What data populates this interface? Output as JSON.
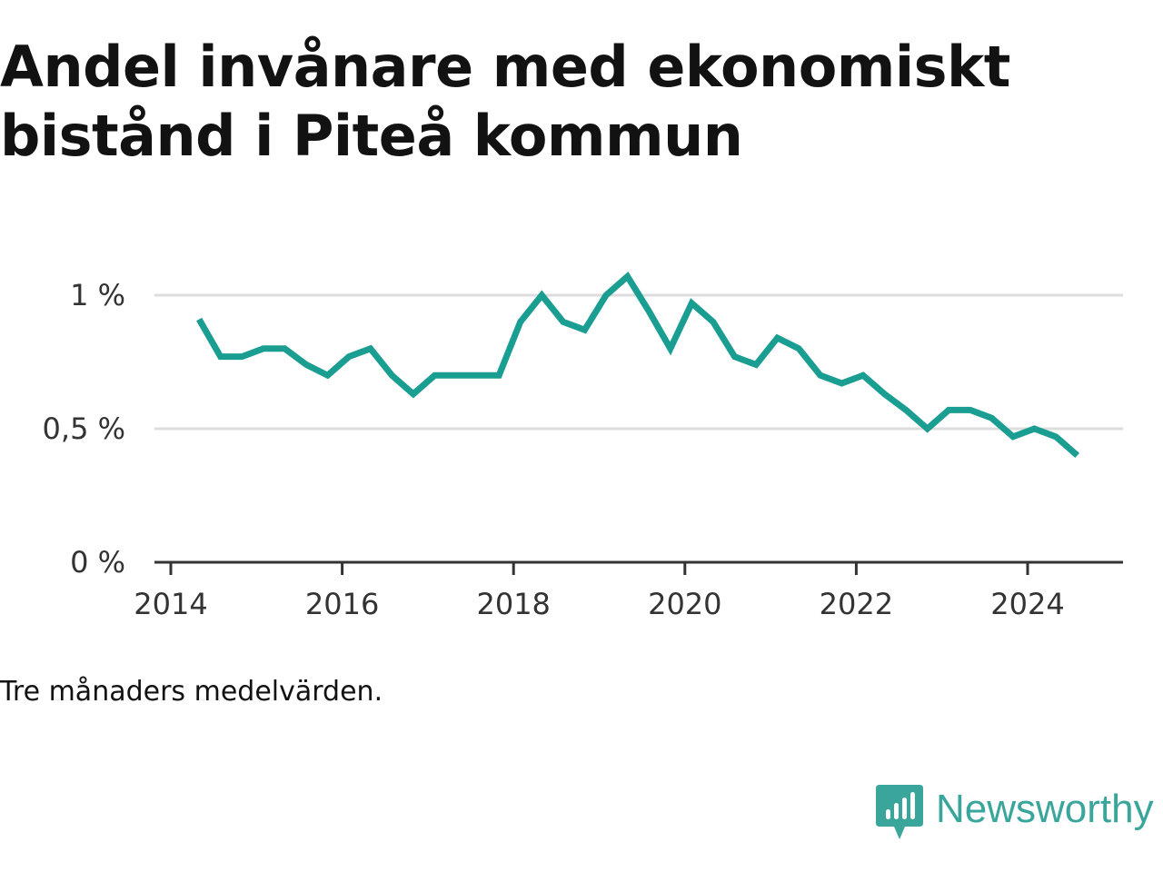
{
  "title": "Andel invånare med ekonomiskt bistånd i Piteå kommun",
  "caption": "Tre månaders medelvärden.",
  "brand": {
    "name": "Newsworthy",
    "icon": "bar-chart-speech-bubble-icon",
    "color": "#3aa59b"
  },
  "chart_data": {
    "type": "line",
    "title": "Andel invånare med ekonomiskt bistånd i Piteå kommun",
    "xlabel": "",
    "ylabel": "",
    "ylim": [
      0,
      1.15
    ],
    "xlim": [
      2014.0,
      2025.2
    ],
    "y_ticks": [
      {
        "value": 0,
        "label": "0 %"
      },
      {
        "value": 0.5,
        "label": "0,5 %"
      },
      {
        "value": 1,
        "label": "1 %"
      }
    ],
    "x_ticks": [
      {
        "value": 2014,
        "label": "2014"
      },
      {
        "value": 2016,
        "label": "2016"
      },
      {
        "value": 2018,
        "label": "2018"
      },
      {
        "value": 2020,
        "label": "2020"
      },
      {
        "value": 2022,
        "label": "2022"
      },
      {
        "value": 2024,
        "label": "2024"
      }
    ],
    "grid": true,
    "line_color": "#1a9e92",
    "series": [
      {
        "x": [
          2014.33,
          2014.58,
          2014.83,
          2015.08,
          2015.33,
          2015.58,
          2015.83,
          2016.08,
          2016.33,
          2016.58,
          2016.83,
          2017.08,
          2017.33,
          2017.58,
          2017.83,
          2018.08,
          2018.33,
          2018.58,
          2018.83,
          2019.08,
          2019.33,
          2019.58,
          2019.83,
          2020.08,
          2020.33,
          2020.58,
          2020.83,
          2021.08,
          2021.33,
          2021.58,
          2021.83,
          2022.08,
          2022.33,
          2022.58,
          2022.83,
          2023.08,
          2023.33,
          2023.58,
          2023.83,
          2024.08,
          2024.33,
          2024.58
        ],
        "values": [
          0.91,
          0.77,
          0.77,
          0.8,
          0.8,
          0.74,
          0.7,
          0.77,
          0.8,
          0.7,
          0.63,
          0.7,
          0.7,
          0.7,
          0.7,
          0.9,
          1.0,
          0.9,
          0.87,
          1.0,
          1.07,
          0.94,
          0.8,
          0.97,
          0.9,
          0.77,
          0.74,
          0.84,
          0.8,
          0.7,
          0.67,
          0.7,
          0.63,
          0.57,
          0.5,
          0.57,
          0.57,
          0.54,
          0.47,
          0.5,
          0.47,
          0.4
        ]
      }
    ]
  }
}
